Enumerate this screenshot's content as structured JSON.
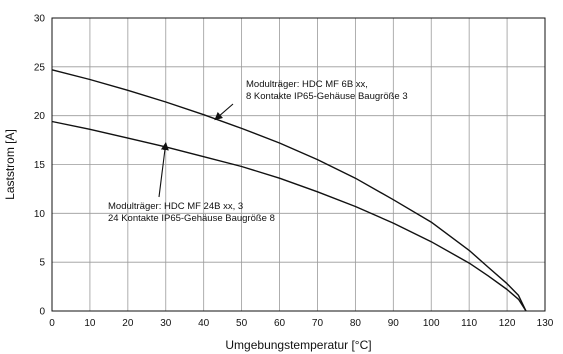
{
  "chart_data": {
    "type": "line",
    "title": "",
    "xlabel": "Umgebungstemperatur [°C]",
    "ylabel": "Laststrom [A]",
    "xlim": [
      0,
      130
    ],
    "ylim": [
      0,
      30
    ],
    "xticks": [
      0,
      10,
      20,
      30,
      40,
      50,
      60,
      70,
      80,
      90,
      100,
      110,
      120,
      130
    ],
    "yticks": [
      0,
      5,
      10,
      15,
      20,
      25,
      30
    ],
    "xtick_labels": [
      "0",
      "10",
      "20",
      "30",
      "40",
      "50",
      "60",
      "70",
      "80",
      "90",
      "100",
      "110",
      "120",
      "130"
    ],
    "ytick_labels": [
      "0",
      "5",
      "10",
      "15",
      "20",
      "25",
      "30"
    ],
    "grid": true,
    "legend": "none",
    "line_color": "#111111",
    "series": [
      {
        "x": [
          0,
          10,
          20,
          30,
          40,
          50,
          60,
          70,
          80,
          90,
          100,
          110,
          115,
          120,
          123,
          125
        ],
        "y": [
          24.7,
          23.7,
          22.6,
          21.4,
          20.1,
          18.7,
          17.2,
          15.5,
          13.6,
          11.4,
          9.1,
          6.2,
          4.5,
          2.8,
          1.6,
          0
        ]
      },
      {
        "x": [
          0,
          10,
          20,
          30,
          40,
          50,
          60,
          70,
          80,
          90,
          100,
          110,
          115,
          120,
          123,
          125
        ],
        "y": [
          19.4,
          18.6,
          17.7,
          16.8,
          15.8,
          14.8,
          13.6,
          12.2,
          10.7,
          9.0,
          7.1,
          4.9,
          3.6,
          2.2,
          1.2,
          0
        ]
      }
    ],
    "annotations": [
      {
        "lines": [
          "Modulträger: HDC MF 6B xx,",
          "8 Kontakte IP65-Gehäuse Baugröße 3"
        ],
        "points_to": [
          43,
          19.6
        ]
      },
      {
        "lines": [
          "Modulträger: HDC MF 24B xx, 3",
          "24 Kontakte IP65-Gehäuse Baugröße 8"
        ],
        "points_to": [
          30,
          17.2
        ]
      }
    ]
  }
}
